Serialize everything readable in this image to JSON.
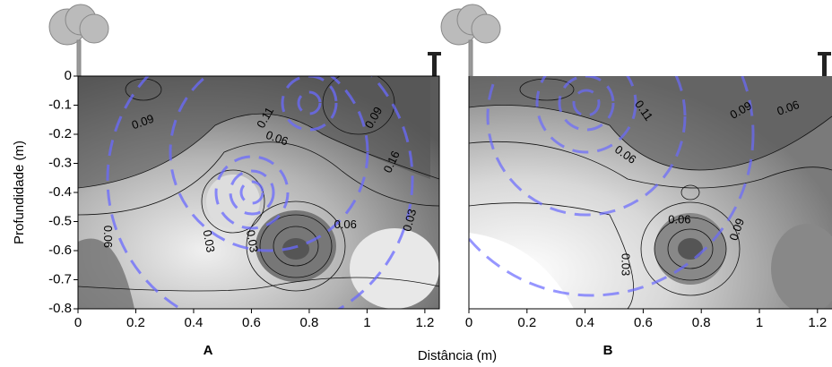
{
  "chart_data": [
    {
      "type": "contour",
      "panel_label": "A",
      "xlabel": "Distância (m)",
      "ylabel": "Profundidade (m)",
      "xlim": [
        0,
        1.25
      ],
      "ylim": [
        -0.8,
        0
      ],
      "xticks": [
        0,
        0.2,
        0.4,
        0.6,
        0.8,
        1,
        1.2
      ],
      "yticks": [
        0,
        -0.1,
        -0.2,
        -0.3,
        -0.4,
        -0.5,
        -0.6,
        -0.7,
        -0.8
      ],
      "contour_labels": [
        0.09,
        0.11,
        0.06,
        0.09,
        0.16,
        0.03,
        0.06,
        0.06,
        0.03,
        0.03
      ]
    },
    {
      "type": "contour",
      "panel_label": "B",
      "xlim": [
        0,
        1.25
      ],
      "ylim": [
        -0.8,
        0
      ],
      "xticks": [
        0,
        0.2,
        0.4,
        0.6,
        0.8,
        1,
        1.2
      ],
      "contour_labels": [
        0.11,
        0.09,
        0.06,
        0.06,
        0.06,
        0.09,
        0.03
      ]
    }
  ]
}
